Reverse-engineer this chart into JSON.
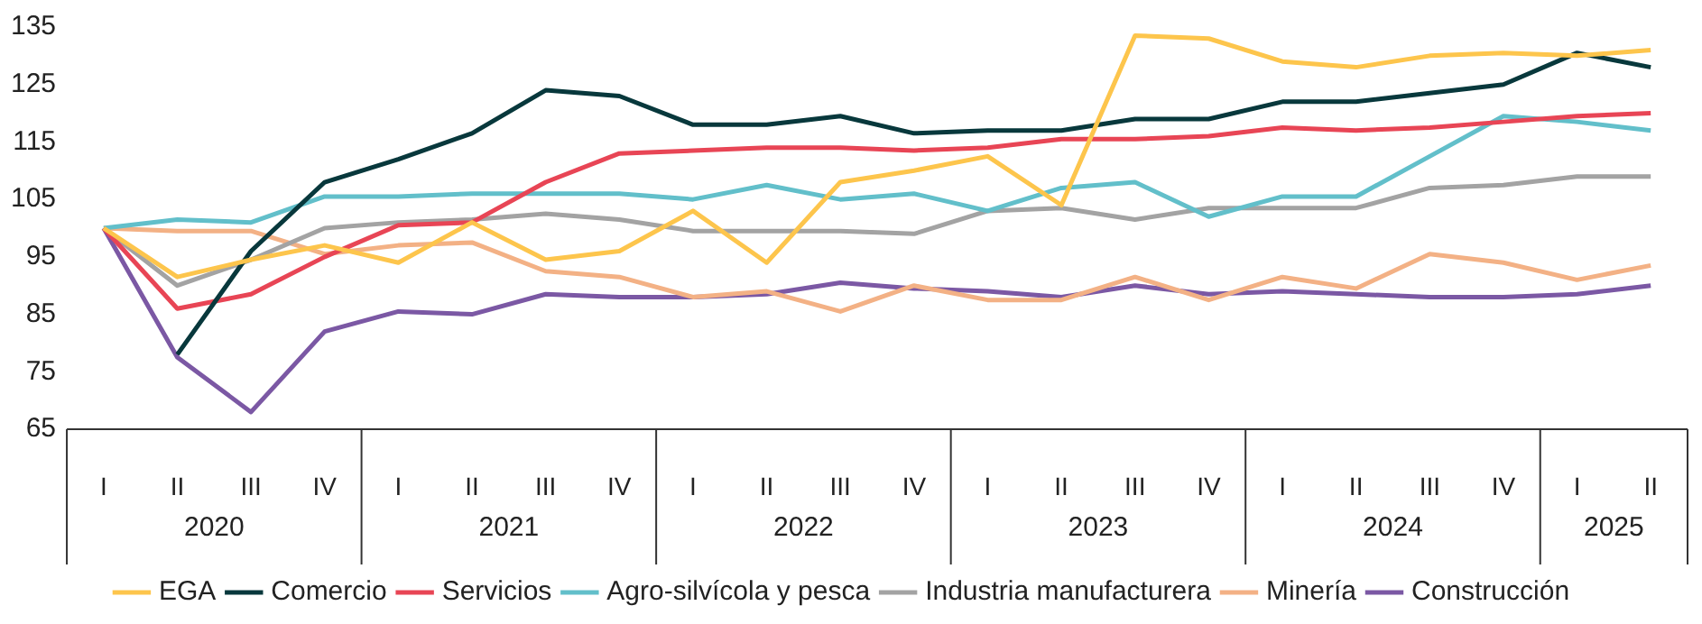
{
  "chart_data": {
    "type": "line",
    "categories": [
      "I",
      "II",
      "III",
      "IV",
      "I",
      "II",
      "III",
      "IV",
      "I",
      "II",
      "III",
      "IV",
      "I",
      "II",
      "III",
      "IV",
      "I",
      "II",
      "III",
      "IV",
      "I",
      "II"
    ],
    "annotations": [
      "2020",
      "2021",
      "2022",
      "2023",
      "2024",
      "2025"
    ],
    "ylim": [
      65,
      135
    ],
    "yticks": [
      65,
      75,
      85,
      95,
      105,
      115,
      125,
      135
    ],
    "grid": false,
    "legend": "bottom",
    "marker": "none",
    "line_style": "solid",
    "series": [
      {
        "name": "EGA",
        "color": "#fdc54c",
        "values": [
          100,
          91.5,
          94.5,
          97,
          94,
          101,
          94.5,
          96,
          103,
          94,
          108,
          110,
          112.5,
          104,
          133.5,
          133,
          129,
          128,
          130,
          130.5,
          130,
          131
        ]
      },
      {
        "name": "Comercio",
        "color": "#08383c",
        "values": [
          null,
          78,
          96,
          108,
          112,
          116.5,
          124,
          123,
          118,
          118,
          119.5,
          116.5,
          117,
          117,
          119,
          119,
          122,
          122,
          123.5,
          125,
          130.5,
          128
        ]
      },
      {
        "name": "Servicios",
        "color": "#e84555",
        "values": [
          100,
          86,
          88.5,
          95,
          100.5,
          101,
          108,
          113,
          113.5,
          114,
          114,
          113.5,
          114,
          115.5,
          115.5,
          116,
          117.5,
          117,
          117.5,
          118.5,
          119.5,
          120
        ]
      },
      {
        "name": "Agro-silvícola y pesca",
        "color": "#62bfca",
        "values": [
          100,
          101.5,
          101,
          105.5,
          105.5,
          106,
          106,
          106,
          105,
          107.5,
          105,
          106,
          103,
          107,
          108,
          102,
          105.5,
          105.5,
          112.5,
          119.5,
          118.5,
          117
        ]
      },
      {
        "name": "Industria manufacturera",
        "color": "#a3a3a3",
        "values": [
          100,
          90,
          94.5,
          100,
          101,
          101.5,
          102.5,
          101.5,
          99.5,
          99.5,
          99.5,
          99,
          103,
          103.5,
          101.5,
          103.5,
          103.5,
          103.5,
          107,
          107.5,
          109,
          109
        ]
      },
      {
        "name": "Minería",
        "color": "#f3b185",
        "values": [
          100,
          99.5,
          99.5,
          95.5,
          97,
          97.5,
          92.5,
          91.5,
          88,
          89,
          85.5,
          90,
          87.5,
          87.5,
          91.5,
          87.5,
          91.5,
          89.5,
          95.5,
          94,
          91,
          93.5
        ]
      },
      {
        "name": "Construcción",
        "color": "#7b58a4",
        "values": [
          100,
          77.5,
          68,
          82,
          85.5,
          85,
          88.5,
          88,
          88,
          88.5,
          90.5,
          89.5,
          89,
          88,
          90,
          88.5,
          89,
          88.5,
          88,
          88,
          88.5,
          90
        ]
      }
    ]
  }
}
